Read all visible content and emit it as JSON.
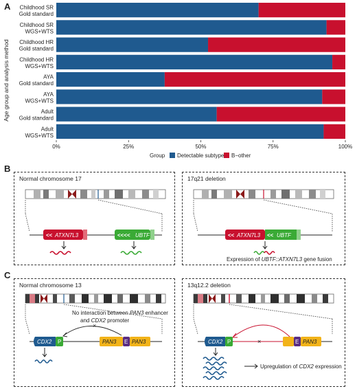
{
  "panels": {
    "a": "A",
    "b": "B",
    "c": "C"
  },
  "chart_data": {
    "type": "bar",
    "orientation": "horizontal",
    "stacked": true,
    "categories": [
      [
        "Childhood SR",
        "Gold standard"
      ],
      [
        "Childhood SR",
        "WGS+WTS"
      ],
      [
        "Childhood HR",
        "Gold standard"
      ],
      [
        "Childhood HR",
        "WGS+WTS"
      ],
      [
        "AYA",
        "Gold standard"
      ],
      [
        "AYA",
        "WGS+WTS"
      ],
      [
        "Adult",
        "Gold standard"
      ],
      [
        "Adult",
        "WGS+WTS"
      ]
    ],
    "series": [
      {
        "name": "Detectable subtype",
        "color": "#1f5a8f",
        "values": [
          70,
          93.5,
          52.5,
          95.5,
          37.5,
          92,
          55.5,
          92.5
        ]
      },
      {
        "name": "B−other",
        "color": "#c8102e",
        "values": [
          30,
          6.5,
          47.5,
          4.5,
          62.5,
          8,
          44.5,
          7.5
        ]
      }
    ],
    "xlim": [
      0,
      100
    ],
    "xticks": [
      "0%",
      "25%",
      "50%",
      "75%",
      "100%"
    ],
    "ylabel": "Age group and analysis method",
    "legend_title": "Group",
    "legend_position": "bottom"
  },
  "panel_b": {
    "left_title": "Normal chromosome 17",
    "right_title": "17q21 deletion",
    "gene1": "ATXN7L3",
    "gene2": "UBTF",
    "arrows_left": "<<",
    "arrows_right": "<<<<",
    "fusion_prefix": "Expression of ",
    "fusion_gene": "UBTF::ATXN7L3",
    "fusion_suffix": " gene fusion",
    "colors": {
      "red": "#c8102e",
      "green": "#3aaa35"
    }
  },
  "panel_c": {
    "left_title": "Normal chromosome 13",
    "right_title": "13q12.2 deletion",
    "gene_cdx2": "CDX2",
    "promoter": "P",
    "enhancer": "E",
    "gene_pan3": "PAN3",
    "note_line1_prefix": "No interaction between ",
    "note_gene1": "PAN3",
    "note_line1_suffix": " enhancer",
    "note_line2_prefix": "and ",
    "note_gene2": "CDX2",
    "note_line2_suffix": " promoter",
    "cross": "×",
    "upreg_prefix": "Upregulation of ",
    "upreg_gene": "CDX2",
    "upreg_suffix": " expression",
    "colors": {
      "blue": "#1f5a8f",
      "green": "#3aaa35",
      "purple": "#5a2d82",
      "yellow": "#f2b319",
      "red": "#c8102e"
    }
  }
}
